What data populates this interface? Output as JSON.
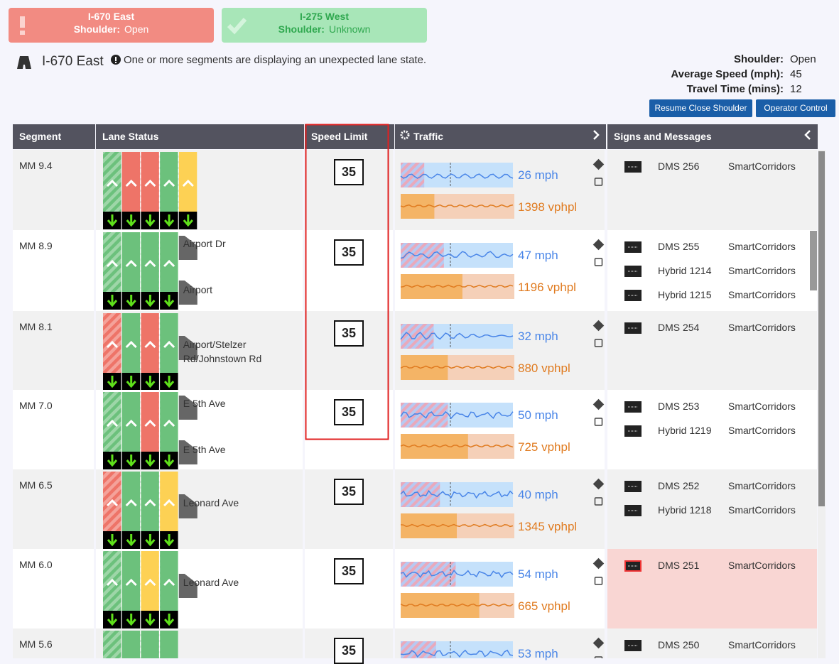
{
  "tabs": [
    {
      "title": "I-670 East",
      "label": "Shoulder:",
      "value": "Open",
      "color": "#f28b82"
    },
    {
      "title": "I-275 West",
      "label": "Shoulder:",
      "value": "Unknown",
      "color": "#a8e6b8"
    }
  ],
  "header": {
    "title": "I-670 East",
    "message": "One or more segments are displaying an unexpected lane state."
  },
  "stats": [
    {
      "label": "Shoulder:",
      "value": "Open"
    },
    {
      "label": "Average Speed (mph):",
      "value": "45"
    },
    {
      "label": "Travel Time (mins):",
      "value": "12"
    }
  ],
  "buttons": [
    "Resume Close Shoulder",
    "Operator Control"
  ],
  "table": {
    "columns": [
      "Segment",
      "Lane Status",
      "Speed Limit",
      "Traffic",
      "Signs and Messages"
    ],
    "rows": [
      {
        "segment": "MM 9.4",
        "lanes": [
          "green",
          "red",
          "red",
          "green",
          "yellow"
        ],
        "exits": [],
        "speed_limit": "35",
        "speed": "26 mph",
        "volume": "1398 vphpl",
        "signs": [
          {
            "name": "DMS 256",
            "source": "SmartCorridors"
          }
        ]
      },
      {
        "segment": "MM 8.9",
        "lanes": [
          "green",
          "green",
          "green",
          "green"
        ],
        "exits": [
          "Airport Dr",
          "Airport"
        ],
        "speed_limit": "35",
        "speed": "47 mph",
        "volume": "1196 vphpl",
        "signs": [
          {
            "name": "DMS 255",
            "source": "SmartCorridors"
          },
          {
            "name": "Hybrid 1214",
            "source": "SmartCorridors"
          },
          {
            "name": "Hybrid 1215",
            "source": "SmartCorridors"
          }
        ]
      },
      {
        "segment": "MM 8.1",
        "lanes": [
          "red",
          "green",
          "red",
          "green"
        ],
        "exits": [
          "Airport/Stelzer Rd/Johnstown Rd"
        ],
        "speed_limit": "35",
        "speed": "32 mph",
        "volume": "880 vphpl",
        "signs": [
          {
            "name": "DMS 254",
            "source": "SmartCorridors"
          }
        ]
      },
      {
        "segment": "MM 7.0",
        "lanes": [
          "green",
          "green",
          "red",
          "green"
        ],
        "exits": [
          "E 5th Ave",
          "E 5th Ave"
        ],
        "speed_limit": "35",
        "speed": "50 mph",
        "volume": "725 vphpl",
        "signs": [
          {
            "name": "DMS 253",
            "source": "SmartCorridors"
          },
          {
            "name": "Hybrid 1219",
            "source": "SmartCorridors"
          }
        ]
      },
      {
        "segment": "MM 6.5",
        "lanes": [
          "red",
          "green",
          "green",
          "yellow"
        ],
        "exits": [
          "Leonard Ave"
        ],
        "speed_limit": "35",
        "speed": "40 mph",
        "volume": "1345 vphpl",
        "signs": [
          {
            "name": "DMS 252",
            "source": "SmartCorridors"
          },
          {
            "name": "Hybrid 1218",
            "source": "SmartCorridors"
          }
        ]
      },
      {
        "segment": "MM 6.0",
        "lanes": [
          "green",
          "green",
          "yellow",
          "green"
        ],
        "exits": [
          "Leonard Ave"
        ],
        "speed_limit": "35",
        "speed": "54 mph",
        "volume": "665 vphpl",
        "signs": [
          {
            "name": "DMS 251",
            "source": "SmartCorridors"
          }
        ],
        "alert": true
      },
      {
        "segment": "MM 5.6",
        "lanes": [
          "green",
          "green",
          "green",
          "green"
        ],
        "exits": [],
        "speed_limit": "35",
        "speed": "53 mph",
        "volume": "",
        "signs": [
          {
            "name": "DMS 250",
            "source": "SmartCorridors"
          }
        ]
      }
    ]
  }
}
